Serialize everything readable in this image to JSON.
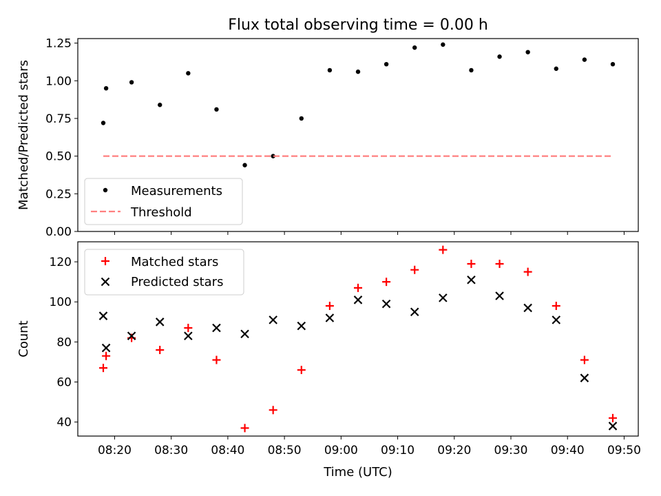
{
  "title": "Flux total observing time = 0.00 h",
  "x_label": "Time (UTC)",
  "x_ticks": [
    "08:20",
    "08:30",
    "08:40",
    "08:50",
    "09:00",
    "09:10",
    "09:20",
    "09:30",
    "09:40",
    "09:50"
  ],
  "colors": {
    "measurement": "#000000",
    "threshold": "#ff7f7f",
    "matched": "#ff0000",
    "predicted": "#000000"
  },
  "chart_data": [
    {
      "type": "scatter",
      "panel": "top",
      "ylabel": "Matched/Predicted stars",
      "ylim": [
        0.0,
        1.28
      ],
      "yticks": [
        "0.00",
        "0.25",
        "0.50",
        "0.75",
        "1.00",
        "1.25"
      ],
      "ytick_values": [
        0.0,
        0.25,
        0.5,
        0.75,
        1.0,
        1.25
      ],
      "xlim": [
        "08:13:30",
        "09:52:30"
      ],
      "legend_position": "lower-left",
      "series": [
        {
          "name": "Measurements",
          "marker": "dot",
          "x": [
            "08:18",
            "08:18:30",
            "08:23",
            "08:28",
            "08:33",
            "08:38",
            "08:43",
            "08:48",
            "08:53",
            "08:58",
            "09:03",
            "09:08",
            "09:13",
            "09:18",
            "09:23",
            "09:28",
            "09:33",
            "09:38",
            "09:43",
            "09:48"
          ],
          "y": [
            0.72,
            0.95,
            0.99,
            0.84,
            1.05,
            0.81,
            0.44,
            0.5,
            0.75,
            1.07,
            1.06,
            1.11,
            1.22,
            1.24,
            1.07,
            1.16,
            1.19,
            1.08,
            1.14,
            1.11
          ]
        },
        {
          "name": "Threshold",
          "style": "dashed",
          "x": [
            "08:18",
            "09:48"
          ],
          "y": [
            0.5,
            0.5
          ]
        }
      ]
    },
    {
      "type": "scatter",
      "panel": "bottom",
      "ylabel": "Count",
      "xlabel": "Time (UTC)",
      "ylim": [
        33,
        130
      ],
      "yticks": [
        "40",
        "60",
        "80",
        "100",
        "120"
      ],
      "ytick_values": [
        40,
        60,
        80,
        100,
        120
      ],
      "xlim": [
        "08:13:30",
        "09:52:30"
      ],
      "legend_position": "upper-left",
      "series": [
        {
          "name": "Matched stars",
          "marker": "plus",
          "x": [
            "08:18",
            "08:18:30",
            "08:23",
            "08:28",
            "08:33",
            "08:38",
            "08:43",
            "08:48",
            "08:53",
            "08:58",
            "09:03",
            "09:08",
            "09:13",
            "09:18",
            "09:23",
            "09:28",
            "09:33",
            "09:38",
            "09:43",
            "09:48"
          ],
          "y": [
            67,
            73,
            82,
            76,
            87,
            71,
            37,
            46,
            66,
            98,
            107,
            110,
            116,
            126,
            119,
            119,
            115,
            98,
            71,
            42
          ]
        },
        {
          "name": "Predicted stars",
          "marker": "x",
          "x": [
            "08:18",
            "08:18:30",
            "08:23",
            "08:28",
            "08:33",
            "08:38",
            "08:43",
            "08:48",
            "08:53",
            "08:58",
            "09:03",
            "09:08",
            "09:13",
            "09:18",
            "09:23",
            "09:28",
            "09:33",
            "09:38",
            "09:43",
            "09:48"
          ],
          "y": [
            93,
            77,
            83,
            90,
            83,
            87,
            84,
            91,
            88,
            92,
            101,
            99,
            95,
            102,
            111,
            103,
            97,
            91,
            62,
            38
          ]
        }
      ]
    }
  ]
}
